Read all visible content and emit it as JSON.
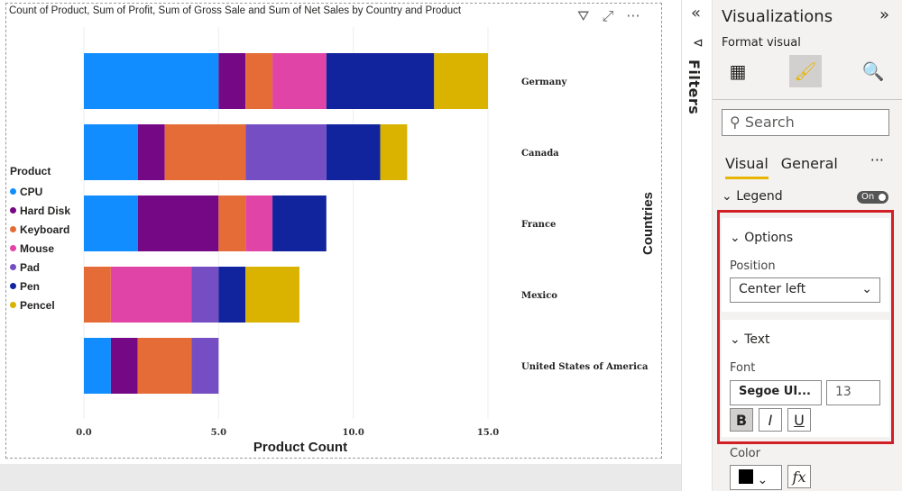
{
  "visual": {
    "title": "Count of Product, Sum of Profit, Sum of Gross Sale and Sum of Net Sales by Country and Product"
  },
  "chart_data": {
    "type": "bar",
    "orientation": "horizontal",
    "stacked": true,
    "categories": [
      "Germany",
      "Canada",
      "France",
      "Mexico",
      "United States of America"
    ],
    "series": [
      {
        "name": "CPU",
        "color": "#118DFF",
        "values": [
          5,
          2,
          2,
          0,
          1
        ]
      },
      {
        "name": "Hard Disk",
        "color": "#750985",
        "values": [
          1,
          1,
          3,
          0,
          1
        ]
      },
      {
        "name": "Keyboard",
        "color": "#E66C37",
        "values": [
          1,
          3,
          1,
          1,
          2
        ]
      },
      {
        "name": "Mouse",
        "color": "#E044A7",
        "values": [
          2,
          0,
          1,
          3,
          0
        ]
      },
      {
        "name": "Pad",
        "color": "#744EC2",
        "values": [
          0,
          3,
          0,
          1,
          1
        ]
      },
      {
        "name": "Pen",
        "color": "#12239E",
        "values": [
          4,
          2,
          2,
          1,
          0
        ]
      },
      {
        "name": "Pencel",
        "color": "#D9B300",
        "values": [
          2,
          1,
          0,
          2,
          0
        ]
      }
    ],
    "xlabel": "Product Count",
    "ylabel": "Countries",
    "xlim": [
      0,
      15
    ],
    "xticks": [
      "0.0",
      "5.0",
      "10.0",
      "15.0"
    ],
    "legend_title": "Product",
    "legend_position": "center-left",
    "grid": true
  },
  "filters": {
    "label": "Filters"
  },
  "pane": {
    "title": "Visualizations",
    "subtitle": "Format visual",
    "search_placeholder": "Search",
    "tabs": [
      "Visual",
      "General"
    ],
    "more": "···",
    "legend": {
      "label": "Legend",
      "toggle": "On"
    },
    "options": {
      "label": "Options",
      "position_label": "Position",
      "position_value": "Center left"
    },
    "text": {
      "label": "Text",
      "font_label": "Font",
      "font_value": "Segoe UI...",
      "size_value": "13",
      "bold": "B",
      "italic": "I",
      "underline": "U"
    },
    "color": {
      "label": "Color",
      "fx": "fx"
    }
  }
}
